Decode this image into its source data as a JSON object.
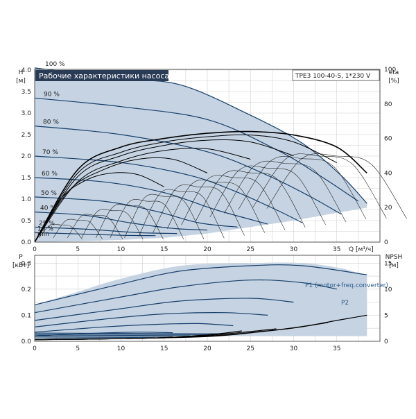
{
  "colors": {
    "band_fill": "#c5d3e2",
    "curve_dark": "#163f6b",
    "eta_curve": "#000000",
    "grid": "#d0d0d0",
    "frame": "#555555",
    "title_bg": "#2a3b55",
    "title_text": "#ffffff",
    "p_label": "#2a5a8a"
  },
  "chart_data": [
    {
      "type": "line",
      "title": "Рабочие характеристики насоса",
      "model": "TPE3 100-40-S, 1*230 V",
      "ylabel": "H",
      "yunit": "[м]",
      "xlabel": "Q [м³/ч]",
      "y2label": "eta",
      "y2unit": "[%]",
      "xlim": [
        0,
        40
      ],
      "ylim": [
        0,
        4.0
      ],
      "y2lim": [
        0,
        100
      ],
      "grid": true,
      "x_ticks": [
        "0",
        "5",
        "10",
        "15",
        "20",
        "25",
        "30",
        "35"
      ],
      "y_ticks": [
        "0.0",
        "0.5",
        "1.0",
        "1.5",
        "2.0",
        "2.5",
        "3.0",
        "3.5",
        "4.0"
      ],
      "y2_ticks": [
        "0",
        "20",
        "40",
        "60",
        "80",
        "100"
      ],
      "speed_labels": [
        "100 %",
        "90 %",
        "80 %",
        "70 %",
        "60 %",
        "50 %",
        "40 %",
        "25 %",
        "10 %",
        "min"
      ],
      "speed_curves": [
        {
          "name": "100 %",
          "x": [
            0,
            10,
            17,
            25,
            31,
            35.5,
            38.5
          ],
          "y": [
            4.05,
            3.8,
            3.65,
            2.95,
            2.3,
            1.55,
            0.9
          ]
        },
        {
          "name": "90 %",
          "x": [
            0,
            10,
            20,
            28,
            33,
            37.5
          ],
          "y": [
            3.35,
            3.15,
            2.85,
            2.15,
            1.55,
            0.95
          ]
        },
        {
          "name": "80 %",
          "x": [
            0,
            10,
            20,
            27,
            32,
            35.5
          ],
          "y": [
            2.7,
            2.5,
            2.1,
            1.55,
            1.05,
            0.65
          ]
        },
        {
          "name": "70 %",
          "x": [
            0,
            10,
            18,
            23,
            28,
            31
          ],
          "y": [
            2.0,
            1.85,
            1.55,
            1.2,
            0.75,
            0.45
          ]
        },
        {
          "name": "60 %",
          "x": [
            0,
            8,
            15,
            21,
            27
          ],
          "y": [
            1.5,
            1.4,
            1.15,
            0.75,
            0.42
          ]
        },
        {
          "name": "50 %",
          "x": [
            0,
            8,
            14,
            19,
            23.5
          ],
          "y": [
            1.05,
            0.95,
            0.72,
            0.45,
            0.35
          ]
        },
        {
          "name": "40 %",
          "x": [
            0,
            6,
            11,
            16,
            20
          ],
          "y": [
            0.7,
            0.62,
            0.45,
            0.32,
            0.28
          ]
        },
        {
          "name": "25 %",
          "x": [
            0,
            6,
            12,
            16.5
          ],
          "y": [
            0.35,
            0.3,
            0.22,
            0.2
          ]
        },
        {
          "name": "10 %",
          "x": [
            0,
            5,
            10,
            14
          ],
          "y": [
            0.22,
            0.19,
            0.16,
            0.15
          ]
        }
      ],
      "band_upper": {
        "x": [
          0,
          10,
          17,
          25,
          31,
          35.5,
          38.5
        ],
        "y": [
          4.05,
          3.8,
          3.65,
          2.95,
          2.3,
          1.55,
          0.9
        ]
      },
      "band_lower": {
        "x": [
          0,
          5,
          10,
          15,
          20,
          25,
          30,
          35,
          38.5
        ],
        "y": [
          0.0,
          0.02,
          0.05,
          0.1,
          0.2,
          0.35,
          0.5,
          0.68,
          0.8
        ]
      },
      "eta_curves": [
        {
          "x": [
            0,
            5,
            10,
            15,
            20,
            25,
            30,
            35,
            38.5
          ],
          "y2": [
            0,
            42,
            55,
            60,
            63,
            64,
            62,
            55,
            40
          ]
        },
        {
          "x": [
            0,
            5,
            10,
            15,
            20,
            25,
            30,
            35
          ],
          "y2": [
            0,
            40,
            52,
            58,
            61,
            62,
            58,
            46
          ]
        },
        {
          "x": [
            0,
            5,
            10,
            15,
            20,
            25,
            30
          ],
          "y2": [
            0,
            38,
            50,
            56,
            59,
            58,
            50
          ]
        },
        {
          "x": [
            0,
            5,
            10,
            15,
            20,
            25
          ],
          "y2": [
            0,
            35,
            47,
            53,
            54,
            48
          ]
        },
        {
          "x": [
            0,
            4,
            8,
            12,
            16,
            20
          ],
          "y2": [
            0,
            30,
            42,
            48,
            48,
            40
          ]
        },
        {
          "x": [
            0,
            3,
            6,
            9,
            12,
            15
          ],
          "y2": [
            0,
            25,
            36,
            40,
            39,
            32
          ]
        }
      ]
    },
    {
      "type": "line",
      "ylabel": "P",
      "yunit": "[кВт]",
      "y2label": "NPSH",
      "y2unit": "[м]",
      "xlim": [
        0,
        40
      ],
      "ylim": [
        0,
        0.33
      ],
      "y2lim": [
        0,
        16.5
      ],
      "grid": true,
      "y_ticks": [
        "0.0",
        "0.1",
        "0.2",
        "0.3"
      ],
      "y2_ticks": [
        "0",
        "5",
        "10",
        "15"
      ],
      "series_labels": [
        "P1 (motor+freq.converter)",
        "P2"
      ],
      "band_upper": {
        "x": [
          0,
          5,
          10,
          17,
          25,
          31,
          35.5,
          38.5
        ],
        "y": [
          0.14,
          0.19,
          0.24,
          0.29,
          0.3,
          0.3,
          0.28,
          0.25
        ]
      },
      "band_lower": {
        "x": [
          0,
          10,
          20,
          30,
          38.5
        ],
        "y": [
          0.02,
          0.02,
          0.02,
          0.02,
          0.02
        ]
      },
      "power_curves": [
        {
          "x": [
            0,
            10,
            17,
            25,
            31,
            38.5
          ],
          "y": [
            0.14,
            0.22,
            0.27,
            0.29,
            0.29,
            0.255
          ]
        },
        {
          "x": [
            0,
            10,
            17,
            25,
            31,
            35
          ],
          "y": [
            0.11,
            0.17,
            0.21,
            0.235,
            0.225,
            0.2
          ]
        },
        {
          "x": [
            0,
            10,
            17,
            25,
            30
          ],
          "y": [
            0.08,
            0.125,
            0.155,
            0.165,
            0.15
          ]
        },
        {
          "x": [
            0,
            8,
            15,
            22,
            27
          ],
          "y": [
            0.055,
            0.085,
            0.105,
            0.11,
            0.1
          ]
        },
        {
          "x": [
            0,
            8,
            14,
            19,
            23
          ],
          "y": [
            0.035,
            0.055,
            0.065,
            0.068,
            0.06
          ]
        },
        {
          "x": [
            0,
            6,
            12,
            16
          ],
          "y": [
            0.02,
            0.03,
            0.035,
            0.033
          ]
        }
      ],
      "npsh_curves": [
        {
          "x": [
            0,
            10,
            20,
            27,
            31,
            35,
            38.5
          ],
          "y2": [
            0.3,
            0.5,
            1.0,
            2.0,
            2.8,
            4.0,
            5.0
          ]
        },
        {
          "x": [
            0,
            10,
            20,
            26,
            30,
            34
          ],
          "y2": [
            0.3,
            0.5,
            0.9,
            1.8,
            2.6,
            3.6
          ]
        },
        {
          "x": [
            0,
            10,
            18,
            24,
            28
          ],
          "y2": [
            0.3,
            0.5,
            0.9,
            1.7,
            2.4
          ]
        },
        {
          "x": [
            0,
            10,
            16,
            21,
            24
          ],
          "y2": [
            0.3,
            0.5,
            0.8,
            1.4,
            2.0
          ]
        }
      ]
    }
  ]
}
